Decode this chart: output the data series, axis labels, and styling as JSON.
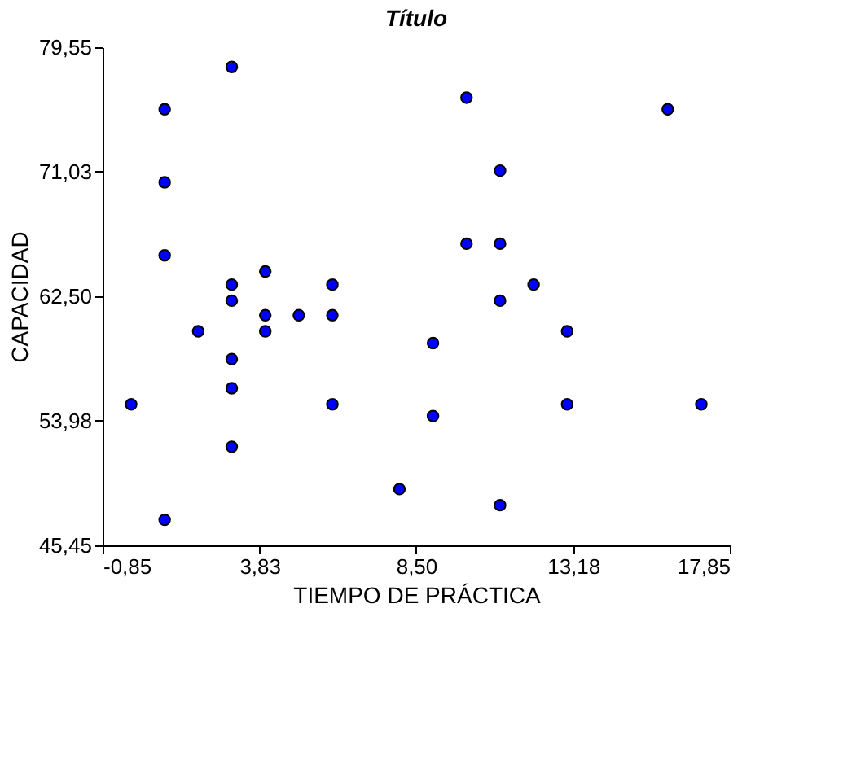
{
  "chart_data": {
    "type": "scatter",
    "title": "Título",
    "xlabel": "TIEMPO DE PRÁCTICA",
    "ylabel": "CAPACIDAD",
    "x": [
      3,
      1,
      1,
      1,
      4,
      3,
      6,
      3,
      10,
      16,
      11,
      10,
      11,
      12,
      11,
      2,
      4,
      4,
      5,
      6,
      3,
      3,
      0,
      6,
      9,
      9,
      3,
      8,
      1,
      13,
      13,
      17,
      11
    ],
    "series": [
      {
        "color": "#0000ff",
        "values": [
          78.2,
          75.3,
          70.3,
          65.3,
          64.2,
          63.3,
          63.3,
          62.2,
          76.1,
          75.3,
          71.1,
          66.1,
          66.1,
          63.3,
          62.2,
          60.1,
          61.2,
          60.1,
          61.2,
          61.2,
          58.2,
          56.2,
          55.1,
          55.1,
          59.3,
          54.3,
          52.2,
          49.3,
          47.2,
          60.1,
          55.1,
          55.1,
          48.2
        ]
      }
    ],
    "xlim": [
      -0.85,
      17.85
    ],
    "xticks": [
      {
        "value": -0.85,
        "label": "-0,85"
      },
      {
        "value": 3.83,
        "label": "3,83"
      },
      {
        "value": 8.5,
        "label": "8,50"
      },
      {
        "value": 13.18,
        "label": "13,18"
      },
      {
        "value": 17.85,
        "label": "17,85"
      }
    ],
    "ylim": [
      45.45,
      79.55
    ],
    "yticks": [
      {
        "value": 45.45,
        "label": "45,45"
      },
      {
        "value": 53.98,
        "label": "53,98"
      },
      {
        "value": 62.5,
        "label": "62,50"
      },
      {
        "value": 71.03,
        "label": "71,03"
      },
      {
        "value": 79.55,
        "label": "79,55"
      }
    ],
    "grid": false,
    "marker": "circle"
  }
}
